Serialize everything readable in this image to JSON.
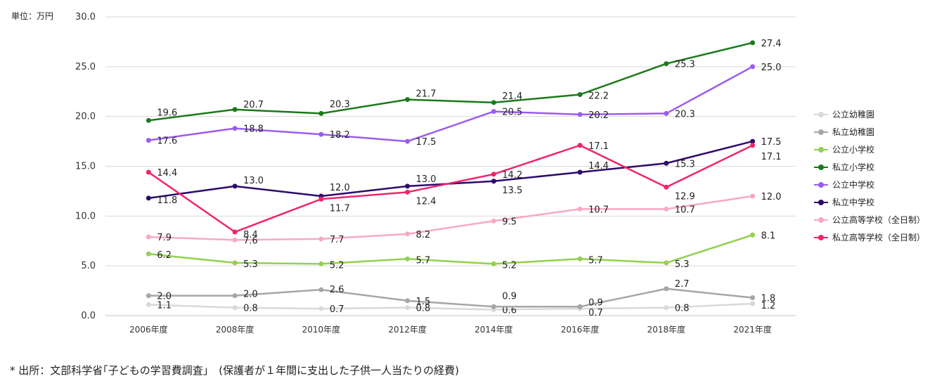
{
  "unit_label": "単位：万円",
  "source_note": "* 出所：文部科学省｢子どもの学習費調査」　(保護者が１年間に支出した子供一人当たりの経費)",
  "chart_data": {
    "type": "line",
    "categories": [
      "2006年度",
      "2008年度",
      "2010年度",
      "2012年度",
      "2014年度",
      "2016年度",
      "2018年度",
      "2021年度"
    ],
    "ylim": [
      0,
      30
    ],
    "yticks": [
      "0.0",
      "5.0",
      "10.0",
      "15.0",
      "20.0",
      "25.0",
      "30.0"
    ],
    "grid": true,
    "legend_position": "right",
    "series": [
      {
        "name": "公立幼稚園",
        "color": "#d9d9d9",
        "values": [
          1.1,
          0.8,
          0.7,
          0.8,
          0.6,
          0.7,
          0.8,
          1.2
        ],
        "labels": [
          "1.1",
          "0.8",
          "0.7",
          "0.8",
          "0.6",
          "0.7",
          "0.8",
          "1.2"
        ]
      },
      {
        "name": "私立幼稚園",
        "color": "#a6a6a6",
        "values": [
          2.0,
          2.0,
          2.6,
          1.5,
          0.9,
          0.9,
          2.7,
          1.8
        ],
        "labels": [
          "2.0",
          "2.0",
          "2.6",
          "1.5",
          "0.9",
          "0.9",
          "2.7",
          "1.8"
        ]
      },
      {
        "name": "公立小学校",
        "color": "#92d050",
        "values": [
          6.2,
          5.3,
          5.2,
          5.7,
          5.2,
          5.7,
          5.3,
          8.1
        ],
        "labels": [
          "6.2",
          "5.3",
          "5.2",
          "5.7",
          "5.2",
          "5.7",
          "5.3",
          "8.1"
        ]
      },
      {
        "name": "私立小学校",
        "color": "#1a7a1a",
        "values": [
          19.6,
          20.7,
          20.3,
          21.7,
          21.4,
          22.2,
          25.3,
          27.4
        ],
        "labels": [
          "19.6",
          "20.7",
          "20.3",
          "21.7",
          "21.4",
          "22.2",
          "25.3",
          "27.4"
        ]
      },
      {
        "name": "公立中学校",
        "color": "#9b5cf0",
        "values": [
          17.6,
          18.8,
          18.2,
          17.5,
          20.5,
          20.2,
          20.3,
          25.0
        ],
        "labels": [
          "17.6",
          "18.8",
          "18.2",
          "17.5",
          "20.5",
          "20.2",
          "20.3",
          "25.0"
        ]
      },
      {
        "name": "私立中学校",
        "color": "#2e0a6b",
        "values": [
          11.8,
          13.0,
          12.0,
          13.0,
          13.5,
          14.4,
          15.3,
          17.5
        ],
        "labels": [
          "11.8",
          "13.0",
          "12.0",
          "13.0",
          "13.5",
          "14.4",
          "15.3",
          "17.5"
        ]
      },
      {
        "name": "公立高等学校（全日制）",
        "color": "#f7a8c8",
        "values": [
          7.9,
          7.6,
          7.7,
          8.2,
          9.5,
          10.7,
          10.7,
          12.0
        ],
        "labels": [
          "7.9",
          "7.6",
          "7.7",
          "8.2",
          "9.5",
          "10.7",
          "10.7",
          "12.0"
        ]
      },
      {
        "name": "私立高等学校（全日制）",
        "color": "#f0246e",
        "values": [
          14.4,
          8.4,
          11.7,
          12.4,
          14.2,
          17.1,
          12.9,
          17.1
        ],
        "labels": [
          "14.4",
          "8.4",
          "11.7",
          "12.4",
          "14.2",
          "17.1",
          "12.9",
          "17.1"
        ]
      }
    ]
  }
}
